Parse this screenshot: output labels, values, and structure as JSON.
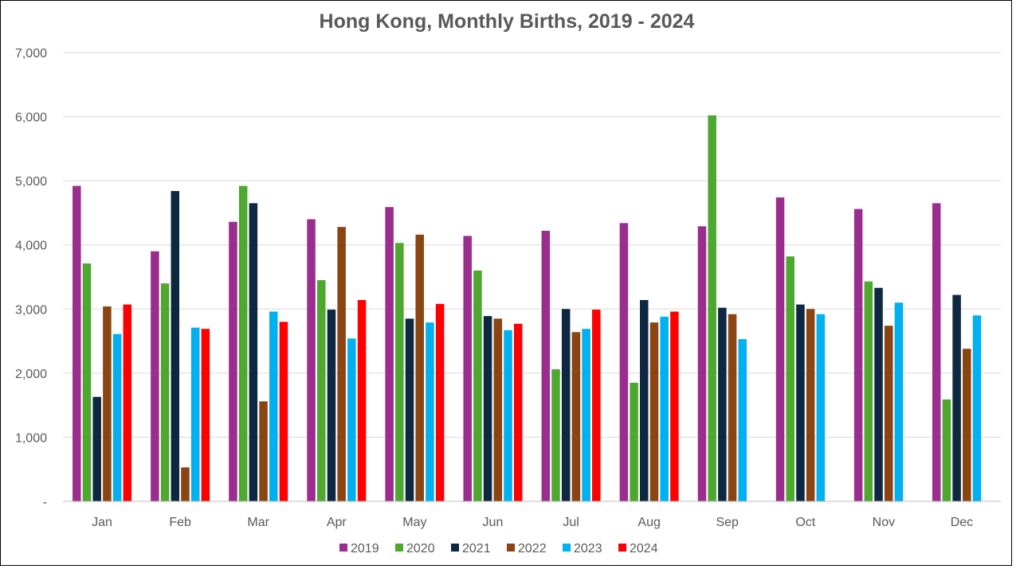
{
  "chart_data": {
    "type": "bar",
    "title": "Hong Kong, Monthly Births, 2019 - 2024",
    "xlabel": "",
    "ylabel": "",
    "ylim": [
      0,
      7000
    ],
    "yticks": [
      0,
      1000,
      2000,
      3000,
      4000,
      5000,
      6000,
      7000
    ],
    "ytick_labels": [
      "-",
      "1,000",
      "2,000",
      "3,000",
      "4,000",
      "5,000",
      "6,000",
      "7,000"
    ],
    "grid": true,
    "legend_position": "bottom",
    "categories": [
      "Jan",
      "Feb",
      "Mar",
      "Apr",
      "May",
      "Jun",
      "Jul",
      "Aug",
      "Sep",
      "Oct",
      "Nov",
      "Dec"
    ],
    "series": [
      {
        "name": "2019",
        "color": "#9B2D8E",
        "values": [
          4920,
          3900,
          4360,
          4400,
          4590,
          4140,
          4220,
          4340,
          4290,
          4740,
          4560,
          4650
        ]
      },
      {
        "name": "2020",
        "color": "#4EA72E",
        "values": [
          3710,
          3400,
          4920,
          3450,
          4030,
          3600,
          2060,
          1850,
          6020,
          3820,
          3430,
          1590
        ]
      },
      {
        "name": "2021",
        "color": "#0E2841",
        "values": [
          1630,
          4840,
          4650,
          2990,
          2850,
          2890,
          3000,
          3140,
          3020,
          3070,
          3330,
          3220
        ]
      },
      {
        "name": "2022",
        "color": "#8B4513",
        "values": [
          3040,
          530,
          1560,
          4280,
          4160,
          2850,
          2640,
          2790,
          2920,
          3000,
          2740,
          2380
        ]
      },
      {
        "name": "2023",
        "color": "#00B0F0",
        "values": [
          2610,
          2710,
          2960,
          2540,
          2790,
          2670,
          2690,
          2880,
          2530,
          2920,
          3100,
          2900
        ]
      },
      {
        "name": "2024",
        "color": "#FF0000",
        "values": [
          3070,
          2690,
          2800,
          3140,
          3080,
          2770,
          2990,
          2960,
          null,
          null,
          null,
          null
        ]
      }
    ]
  }
}
